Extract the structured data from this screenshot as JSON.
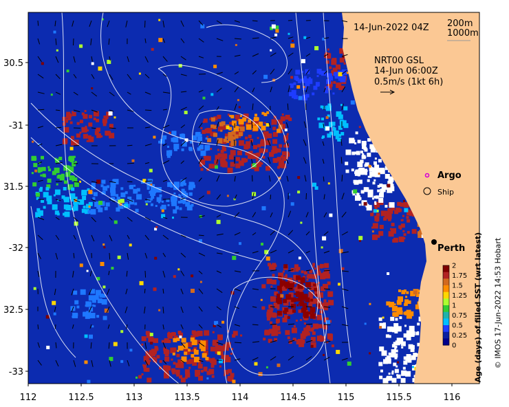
{
  "map": {
    "lon_ticks": [
      "112",
      "112.5",
      "113",
      "113.5",
      "114",
      "114.5",
      "115",
      "115.5",
      "116"
    ],
    "lat_ticks": [
      "30.5",
      "-31",
      "31.5",
      "-32",
      "32.5",
      "-33"
    ],
    "date_label": "14-Jun-2022 04Z",
    "contour_legend": [
      "200m",
      "1000m"
    ],
    "current_info": [
      "NRT00 GSL",
      "14-Jun 06:00Z",
      "0.5m/s (1kt 6h)"
    ],
    "argo_label": "Argo",
    "ship_label": "Ship",
    "city_label": "Perth",
    "colorbar": {
      "title": "Age (days) of filled SST (wrt latest)",
      "ticks": [
        "2",
        "1.75",
        "1.5",
        "1.25",
        "1",
        "0.75",
        "0.5",
        "0.25",
        "0"
      ],
      "colors": [
        "#7f0000",
        "#b22222",
        "#d2691e",
        "#ff8c00",
        "#ffd700",
        "#adff2f",
        "#32cd32",
        "#20b2aa",
        "#00bfff",
        "#1e3cff",
        "#0a1fa0",
        "#00008b"
      ]
    },
    "credit": "© IMOS 17-Jun-2022 14:53 Hobart",
    "colors": {
      "ocean": "#0c2bb0",
      "land": "#fbc894"
    }
  }
}
